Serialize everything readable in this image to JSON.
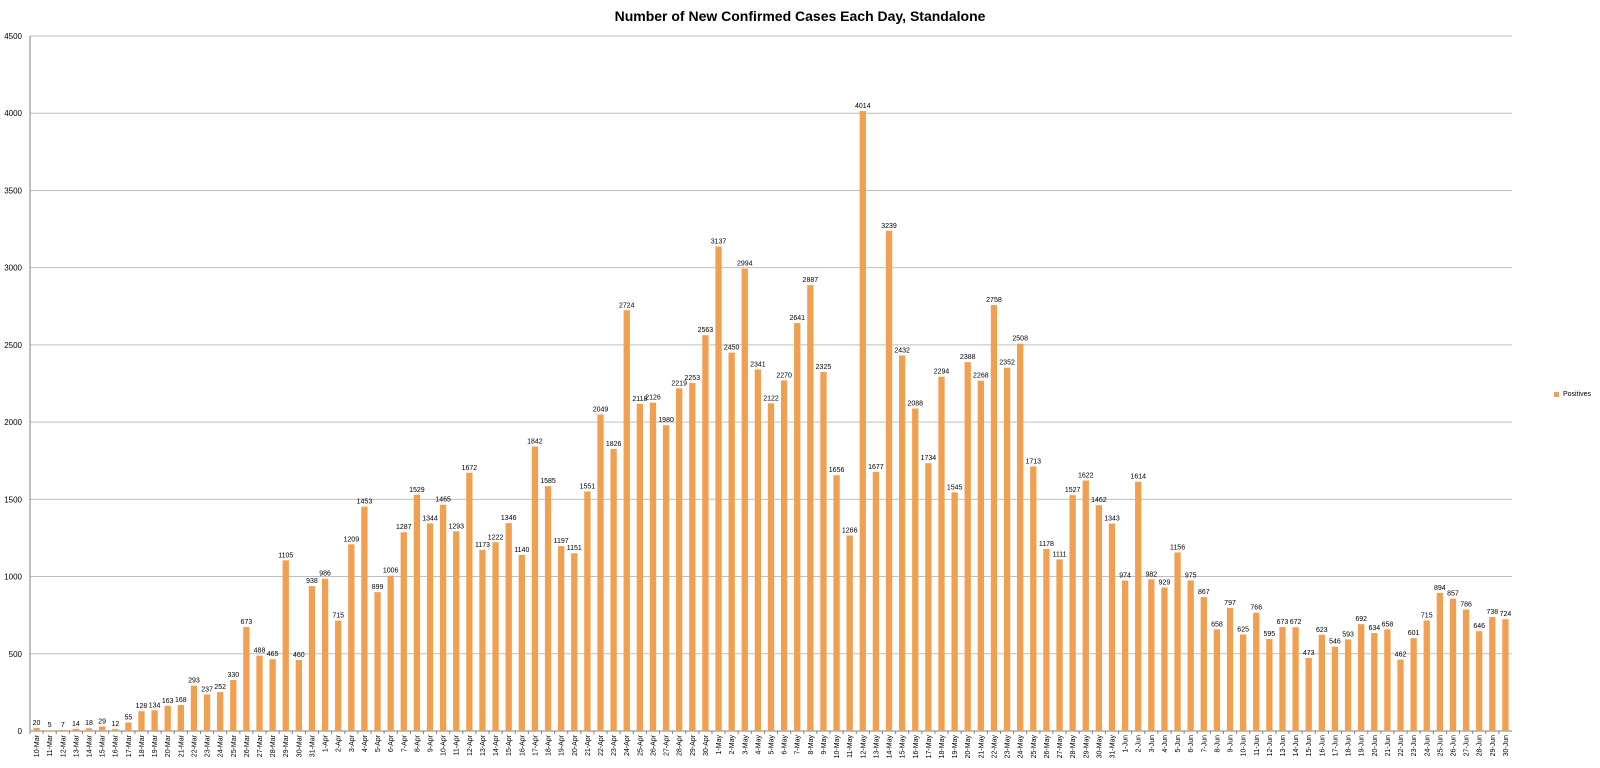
{
  "chart_data": {
    "type": "bar",
    "title": "Number of New Confirmed Cases Each Day, Standalone",
    "xlabel": "",
    "ylabel": "",
    "ylim": [
      0,
      4500
    ],
    "yticks": [
      "0",
      "500",
      "1000",
      "1500",
      "2000",
      "2500",
      "3000",
      "3500",
      "4000",
      "4500"
    ],
    "grid": true,
    "legend_position": "right",
    "colors": {
      "bar": "#F0A050",
      "grid": "#BFBFBF",
      "axis": "#808080"
    },
    "categories": [
      "10-Mar",
      "11-Mar",
      "12-Mar",
      "13-Mar",
      "14-Mar",
      "15-Mar",
      "16-Mar",
      "17-Mar",
      "18-Mar",
      "19-Mar",
      "20-Mar",
      "21-Mar",
      "22-Mar",
      "23-Mar",
      "24-Mar",
      "25-Mar",
      "26-Mar",
      "27-Mar",
      "28-Mar",
      "29-Mar",
      "30-Mar",
      "31-Mar",
      "1-Apr",
      "2-Apr",
      "3-Apr",
      "4-Apr",
      "5-Apr",
      "6-Apr",
      "7-Apr",
      "8-Apr",
      "9-Apr",
      "10-Apr",
      "11-Apr",
      "12-Apr",
      "13-Apr",
      "14-Apr",
      "15-Apr",
      "16-Apr",
      "17-Apr",
      "18-Apr",
      "19-Apr",
      "20-Apr",
      "21-Apr",
      "22-Apr",
      "23-Apr",
      "24-Apr",
      "25-Apr",
      "26-Apr",
      "27-Apr",
      "28-Apr",
      "29-Apr",
      "30-Apr",
      "1-May",
      "2-May",
      "3-May",
      "4-May",
      "5-May",
      "6-May",
      "7-May",
      "8-May",
      "9-May",
      "10-May",
      "11-May",
      "12-May",
      "13-May",
      "14-May",
      "15-May",
      "16-May",
      "17-May",
      "18-May",
      "19-May",
      "20-May",
      "21-May",
      "22-May",
      "23-May",
      "24-May",
      "25-May",
      "26-May",
      "27-May",
      "28-May",
      "29-May",
      "30-May",
      "31-May",
      "1-Jun",
      "2-Jun",
      "3-Jun",
      "4-Jun",
      "5-Jun",
      "6-Jun",
      "7-Jun",
      "8-Jun",
      "9-Jun",
      "10-Jun",
      "11-Jun",
      "12-Jun",
      "13-Jun",
      "14-Jun",
      "15-Jun",
      "16-Jun",
      "17-Jun",
      "18-Jun",
      "19-Jun",
      "20-Jun",
      "21-Jun",
      "22-Jun",
      "23-Jun",
      "24-Jun",
      "25-Jun",
      "26-Jun",
      "27-Jun",
      "28-Jun",
      "29-Jun",
      "30-Jun"
    ],
    "series": [
      {
        "name": "Positives",
        "values": [
          20,
          5,
          7,
          14,
          18,
          29,
          12,
          55,
          128,
          134,
          163,
          168,
          293,
          237,
          252,
          330,
          673,
          488,
          465,
          1105,
          460,
          938,
          986,
          715,
          1209,
          1453,
          899,
          1006,
          1287,
          1529,
          1344,
          1465,
          1293,
          1672,
          1173,
          1222,
          1346,
          1140,
          1842,
          1585,
          1197,
          1151,
          1551,
          2049,
          1826,
          2724,
          2118,
          2126,
          1980,
          2219,
          2253,
          2563,
          3137,
          2450,
          2994,
          2341,
          2122,
          2270,
          2641,
          2887,
          2325,
          1656,
          1266,
          4014,
          1677,
          3239,
          2432,
          2088,
          1734,
          2294,
          1545,
          2388,
          2268,
          2758,
          2352,
          2508,
          1713,
          1178,
          1111,
          1527,
          1622,
          1462,
          1343,
          974,
          1614,
          982,
          929,
          1156,
          975,
          867,
          658,
          797,
          625,
          766,
          595,
          673,
          672,
          473,
          623,
          546,
          593,
          692,
          634,
          658,
          462,
          601,
          715,
          894,
          857,
          786,
          646,
          738,
          724
        ]
      }
    ]
  }
}
